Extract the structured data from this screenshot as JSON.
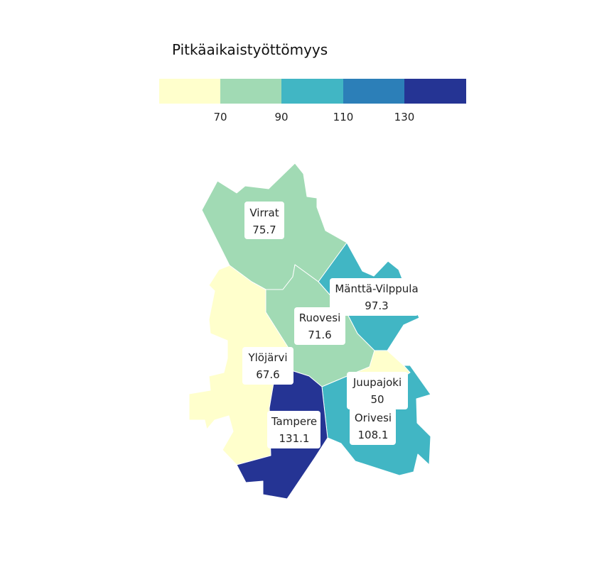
{
  "legend": {
    "title": "Pitkäaikaistyöttömyys",
    "bins": [
      {
        "color": "#FFFFCC",
        "upper": "70"
      },
      {
        "color": "#A1DAB4",
        "upper": "90"
      },
      {
        "color": "#41B6C4",
        "upper": "110"
      },
      {
        "color": "#2C7FB8",
        "upper": "130"
      },
      {
        "color": "#253494",
        "upper": ""
      }
    ]
  },
  "regions": [
    {
      "id": "virrat",
      "name": "Virrat",
      "value": "75.7",
      "color": "#A1DAB4"
    },
    {
      "id": "mantta",
      "name": "Mänttä-Vilppula",
      "value": "97.3",
      "color": "#41B6C4"
    },
    {
      "id": "ruovesi",
      "name": "Ruovesi",
      "value": "71.6",
      "color": "#A1DAB4"
    },
    {
      "id": "ylojarvi",
      "name": "Ylöjärvi",
      "value": "67.6",
      "color": "#FFFFCC"
    },
    {
      "id": "juupajoki",
      "name": "Juupajoki",
      "value": "50",
      "color": "#FFFFCC"
    },
    {
      "id": "orivesi",
      "name": "Orivesi",
      "value": "108.1",
      "color": "#41B6C4"
    },
    {
      "id": "tampere",
      "name": "Tampere",
      "value": "131.1",
      "color": "#253494"
    }
  ]
}
